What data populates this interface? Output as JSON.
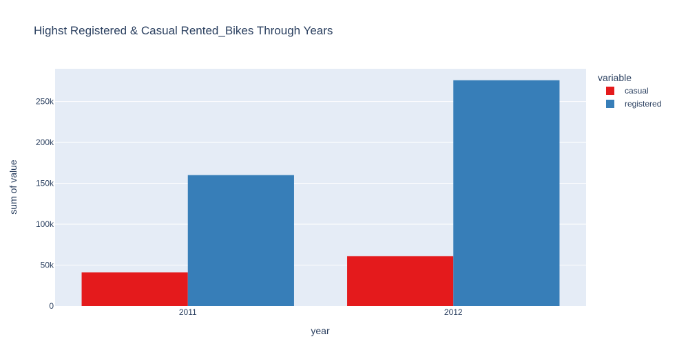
{
  "chart_data": {
    "type": "bar",
    "title": "Highst Registered & Casual Rented_Bikes Through Years",
    "xlabel": "year",
    "ylabel": "sum of value",
    "categories": [
      "2011",
      "2012"
    ],
    "series": [
      {
        "name": "casual",
        "values": [
          41000,
          61000
        ],
        "color": "#e41a1c"
      },
      {
        "name": "registered",
        "values": [
          160000,
          276000
        ],
        "color": "#377eb8"
      }
    ],
    "ylim": [
      0,
      290000
    ],
    "yticks": [
      0,
      50000,
      100000,
      150000,
      200000,
      250000
    ],
    "ytick_labels": [
      "0",
      "50k",
      "100k",
      "150k",
      "200k",
      "250k"
    ],
    "grid": true,
    "legend_title": "variable",
    "legend_position": "top-right",
    "plot_background": "#e5ecf6"
  }
}
